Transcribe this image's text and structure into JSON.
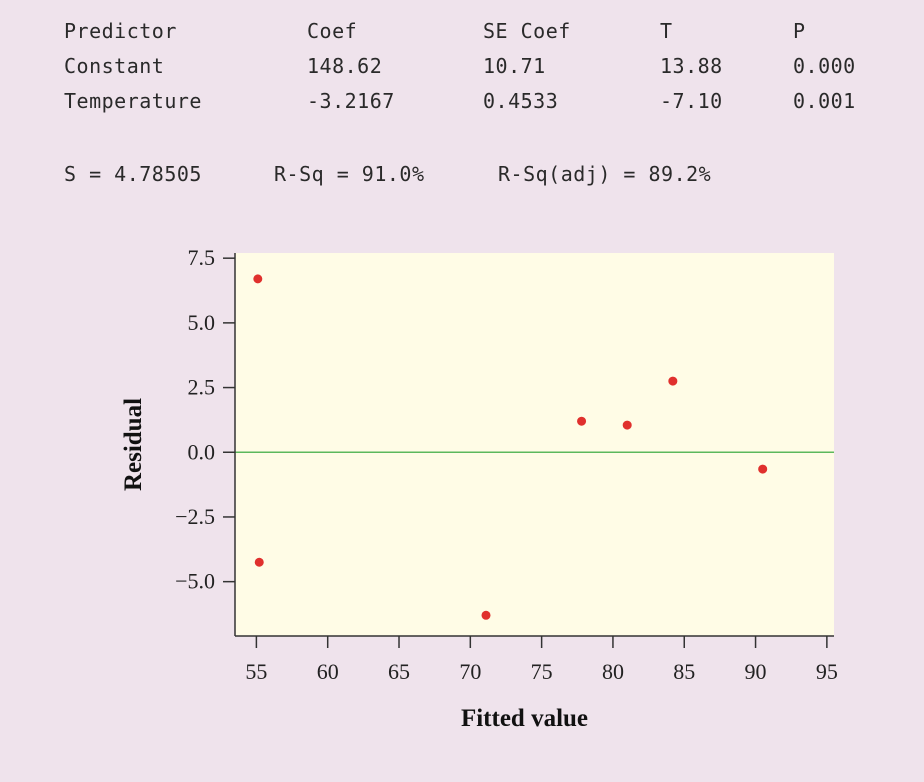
{
  "table": {
    "headers": [
      "Predictor",
      "Coef",
      "SE Coef",
      "T",
      "P"
    ],
    "rows": [
      [
        "Constant",
        "148.62",
        "10.71",
        "13.88",
        "0.000"
      ],
      [
        "Temperature",
        "-3.2167",
        "0.4533",
        "-7.10",
        "0.001"
      ]
    ]
  },
  "summary": {
    "s": "S = 4.78505",
    "rsq": "R-Sq = 91.0%",
    "rsq_adj": "R-Sq(adj) = 89.2%"
  },
  "chart_data": {
    "type": "scatter",
    "xlabel": "Fitted value",
    "ylabel": "Residual",
    "xlim": [
      53.5,
      95.5
    ],
    "ylim": [
      -7.1,
      7.7
    ],
    "xticks": [
      "55",
      "60",
      "65",
      "70",
      "75",
      "80",
      "85",
      "90",
      "95"
    ],
    "yticks": [
      "7.5",
      "5.0",
      "2.5",
      "0.0",
      "−2.5",
      "−5.0"
    ],
    "reference_line_y": 0.0,
    "points": [
      {
        "x": 55.1,
        "y": 6.7
      },
      {
        "x": 55.2,
        "y": -4.25
      },
      {
        "x": 71.1,
        "y": -6.3
      },
      {
        "x": 77.8,
        "y": 1.2
      },
      {
        "x": 81.0,
        "y": 1.05
      },
      {
        "x": 84.2,
        "y": 2.75
      },
      {
        "x": 90.5,
        "y": -0.65
      }
    ],
    "colors": {
      "plot_background": "#fffce6",
      "point": "#e0302d",
      "reference_line": "#5cb85c",
      "page_background": "#efe3ec"
    }
  }
}
